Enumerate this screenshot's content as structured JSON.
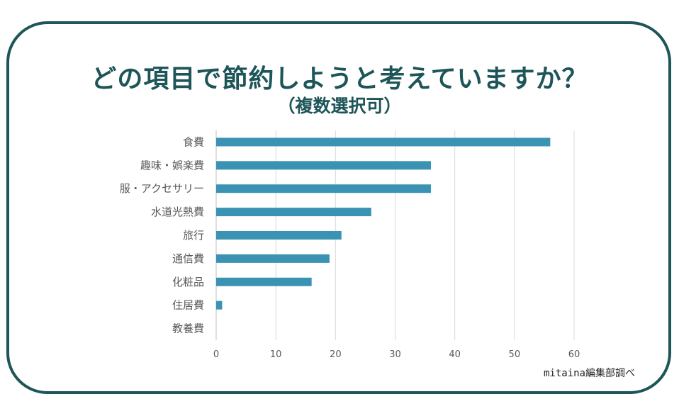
{
  "colors": {
    "frame": "#1d5558",
    "bar": "#3a93b3",
    "grid": "#d9d9d9",
    "text": "#595959"
  },
  "header": {
    "title": "どの項目で節約しようと考えていますか？",
    "subtitle": "（複数選択可）"
  },
  "source": "mitaina編集部調べ",
  "chart_data": {
    "type": "bar",
    "orientation": "horizontal",
    "title": "どの項目で節約しようと考えていますか？",
    "subtitle": "（複数選択可）",
    "categories": [
      "食費",
      "趣味・娯楽費",
      "服・アクセサリー",
      "水道光熱費",
      "旅行",
      "通信費",
      "化粧品",
      "住居費",
      "教養費"
    ],
    "values": [
      56,
      36,
      36,
      26,
      21,
      19,
      16,
      1,
      0
    ],
    "xlim": [
      0,
      60
    ],
    "xticks": [
      0,
      10,
      20,
      30,
      40,
      50,
      60
    ],
    "xlabel": "",
    "ylabel": "",
    "grid": true,
    "legend": "none"
  }
}
